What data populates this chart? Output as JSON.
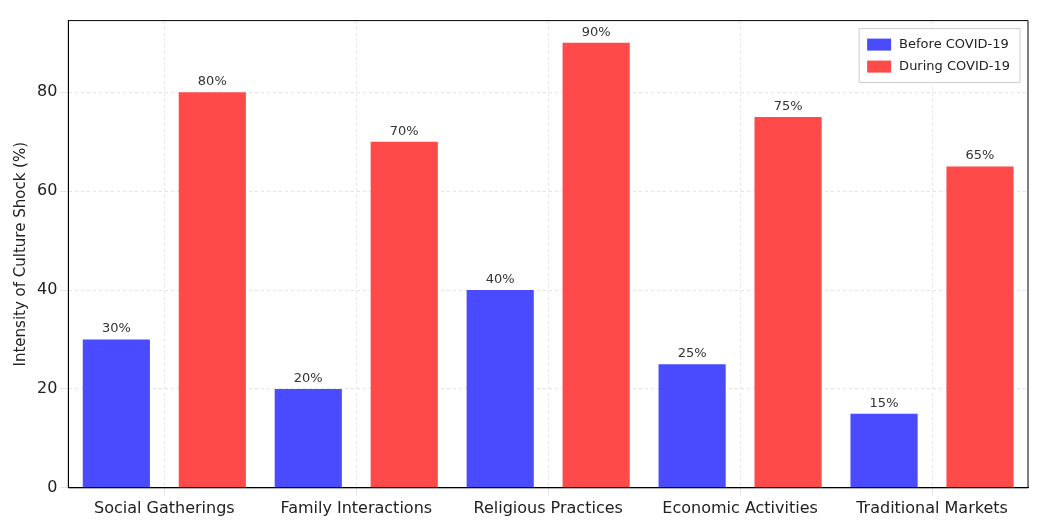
{
  "chart_data": {
    "type": "bar",
    "ylabel": "Intensity of Culture Shock (%)",
    "categories": [
      "Social Gatherings",
      "Family Interactions",
      "Religious Practices",
      "Economic Activities",
      "Traditional Markets"
    ],
    "series": [
      {
        "name": "Before COVID-19",
        "color": "#4a4aff",
        "values": [
          30,
          20,
          40,
          25,
          15
        ],
        "value_labels": [
          "30%",
          "20%",
          "40%",
          "25%",
          "15%"
        ]
      },
      {
        "name": "During COVID-19",
        "color": "#ff4a4a",
        "values": [
          80,
          70,
          90,
          75,
          65
        ],
        "value_labels": [
          "80%",
          "70%",
          "90%",
          "75%",
          "65%"
        ]
      }
    ],
    "ylim": [
      0,
      94.5
    ],
    "yticks": [
      0,
      20,
      40,
      60,
      80
    ],
    "grid": true,
    "legend": "top right"
  }
}
